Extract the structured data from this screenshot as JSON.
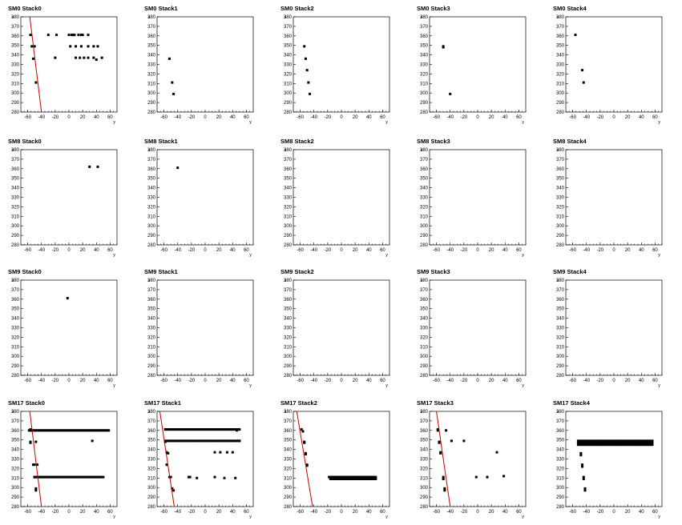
{
  "chart_data": [
    {
      "type": "scatter",
      "title": "SM0 Stack0",
      "xlabel": "y",
      "ylabel": "x",
      "xlim": [
        -70,
        70
      ],
      "ylim": [
        280,
        380
      ],
      "points": [
        [
          -56,
          361
        ],
        [
          -54,
          349
        ],
        [
          -52,
          336
        ],
        [
          -50,
          349
        ],
        [
          -48,
          311
        ],
        [
          -30,
          361
        ],
        [
          -20,
          337
        ],
        [
          -18,
          361
        ],
        [
          0,
          361
        ],
        [
          2,
          349
        ],
        [
          4,
          361
        ],
        [
          6,
          361
        ],
        [
          8,
          361
        ],
        [
          10,
          337
        ],
        [
          10,
          349
        ],
        [
          14,
          361
        ],
        [
          16,
          337
        ],
        [
          18,
          361
        ],
        [
          18,
          349
        ],
        [
          20,
          361
        ],
        [
          22,
          337
        ],
        [
          28,
          361
        ],
        [
          28,
          349
        ],
        [
          28,
          337
        ],
        [
          36,
          349
        ],
        [
          36,
          337
        ],
        [
          40,
          335
        ],
        [
          42,
          349
        ],
        [
          48,
          337
        ]
      ],
      "fit": [
        [
          -57,
          380
        ],
        [
          -40,
          280
        ]
      ]
    },
    {
      "type": "scatter",
      "title": "SM0 Stack1",
      "xlabel": "y",
      "ylabel": "x",
      "xlim": [
        -70,
        70
      ],
      "ylim": [
        280,
        380
      ],
      "points": [
        [
          -52,
          336
        ],
        [
          -48,
          311
        ],
        [
          -46,
          299
        ]
      ],
      "fit": null
    },
    {
      "type": "scatter",
      "title": "SM0 Stack2",
      "xlabel": "y",
      "ylabel": "x",
      "xlim": [
        -70,
        70
      ],
      "ylim": [
        280,
        380
      ],
      "points": [
        [
          -54,
          349
        ],
        [
          -52,
          336
        ],
        [
          -50,
          324
        ],
        [
          -48,
          311
        ],
        [
          -46,
          299
        ]
      ],
      "fit": null
    },
    {
      "type": "scatter",
      "title": "SM0 Stack3",
      "xlabel": "y",
      "ylabel": "x",
      "xlim": [
        -70,
        70
      ],
      "ylim": [
        280,
        380
      ],
      "points": [
        [
          -50,
          349
        ],
        [
          -50,
          348
        ],
        [
          -40,
          299
        ]
      ],
      "fit": null
    },
    {
      "type": "scatter",
      "title": "SM0 Stack4",
      "xlabel": "y",
      "ylabel": "x",
      "xlim": [
        -70,
        70
      ],
      "ylim": [
        280,
        380
      ],
      "points": [
        [
          -56,
          361
        ],
        [
          -46,
          324
        ],
        [
          -44,
          311
        ]
      ],
      "fit": null
    },
    {
      "type": "scatter",
      "title": "SM8 Stack0",
      "xlabel": "y",
      "ylabel": "x",
      "xlim": [
        -70,
        70
      ],
      "ylim": [
        280,
        380
      ],
      "points": [
        [
          30,
          362
        ],
        [
          42,
          362
        ]
      ],
      "fit": null
    },
    {
      "type": "scatter",
      "title": "SM8 Stack1",
      "xlabel": "y",
      "ylabel": "x",
      "xlim": [
        -70,
        70
      ],
      "ylim": [
        280,
        380
      ],
      "points": [
        [
          -40,
          361
        ]
      ],
      "fit": null
    },
    {
      "type": "scatter",
      "title": "SM8 Stack2",
      "xlabel": "y",
      "ylabel": "x",
      "xlim": [
        -70,
        70
      ],
      "ylim": [
        280,
        380
      ],
      "points": [],
      "fit": null
    },
    {
      "type": "scatter",
      "title": "SM8 Stack3",
      "xlabel": "y",
      "ylabel": "x",
      "xlim": [
        -70,
        70
      ],
      "ylim": [
        280,
        380
      ],
      "points": [],
      "fit": null
    },
    {
      "type": "scatter",
      "title": "SM8 Stack4",
      "xlabel": "y",
      "ylabel": "x",
      "xlim": [
        -70,
        70
      ],
      "ylim": [
        280,
        380
      ],
      "points": [],
      "fit": null
    },
    {
      "type": "scatter",
      "title": "SM9 Stack0",
      "xlabel": "y",
      "ylabel": "x",
      "xlim": [
        -70,
        70
      ],
      "ylim": [
        280,
        380
      ],
      "points": [
        [
          -2,
          361
        ]
      ],
      "fit": null
    },
    {
      "type": "scatter",
      "title": "SM9 Stack1",
      "xlabel": "y",
      "ylabel": "x",
      "xlim": [
        -70,
        70
      ],
      "ylim": [
        280,
        380
      ],
      "points": [],
      "fit": null
    },
    {
      "type": "scatter",
      "title": "SM9 Stack2",
      "xlabel": "y",
      "ylabel": "x",
      "xlim": [
        -70,
        70
      ],
      "ylim": [
        280,
        380
      ],
      "points": [],
      "fit": null
    },
    {
      "type": "scatter",
      "title": "SM9 Stack3",
      "xlabel": "y",
      "ylabel": "x",
      "xlim": [
        -70,
        70
      ],
      "ylim": [
        280,
        380
      ],
      "points": [],
      "fit": null
    },
    {
      "type": "scatter",
      "title": "SM9 Stack4",
      "xlabel": "y",
      "ylabel": "x",
      "xlim": [
        -70,
        70
      ],
      "ylim": [
        280,
        380
      ],
      "points": [],
      "fit": null
    },
    {
      "type": "scatter",
      "title": "SM17 Stack0",
      "xlabel": "y",
      "ylabel": "x",
      "xlim": [
        -70,
        70
      ],
      "ylim": [
        280,
        380
      ],
      "points": [
        [
          -56,
          361
        ],
        [
          -56,
          360
        ],
        [
          -56,
          348
        ],
        [
          -56,
          347
        ],
        [
          -52,
          324
        ],
        [
          -50,
          324
        ],
        [
          -46,
          324
        ],
        [
          -48,
          348
        ],
        [
          -50,
          311
        ],
        [
          -48,
          299
        ],
        [
          -48,
          297
        ],
        [
          34,
          349
        ]
      ],
      "bands": [
        {
          "y0": -58,
          "y1": 58,
          "x": 360,
          "step": 2
        },
        {
          "y0": -50,
          "y1": 50,
          "x": 311,
          "step": 2
        }
      ],
      "fit": [
        [
          -57,
          380
        ],
        [
          -40,
          280
        ]
      ]
    },
    {
      "type": "scatter",
      "title": "SM17 Stack1",
      "xlabel": "y",
      "ylabel": "x",
      "xlim": [
        -70,
        70
      ],
      "ylim": [
        280,
        380
      ],
      "points": [
        [
          -58,
          361
        ],
        [
          -58,
          348
        ],
        [
          -56,
          337
        ],
        [
          -54,
          336
        ],
        [
          -56,
          324
        ],
        [
          -52,
          311
        ],
        [
          -50,
          311
        ],
        [
          -48,
          299
        ],
        [
          -46,
          297
        ],
        [
          -24,
          311
        ],
        [
          -22,
          311
        ],
        [
          -12,
          310
        ],
        [
          14,
          311
        ],
        [
          14,
          337
        ],
        [
          22,
          337
        ],
        [
          28,
          310
        ],
        [
          32,
          337
        ],
        [
          40,
          337
        ],
        [
          44,
          310
        ],
        [
          46,
          360
        ],
        [
          50,
          349
        ]
      ],
      "bands": [
        {
          "y0": -58,
          "y1": 50,
          "x": 361,
          "step": 2
        },
        {
          "y0": -58,
          "y1": 50,
          "x": 349,
          "step": 2
        }
      ],
      "fit": [
        [
          -66,
          380
        ],
        [
          -45,
          280
        ]
      ]
    },
    {
      "type": "scatter",
      "title": "SM17 Stack2",
      "xlabel": "y",
      "ylabel": "x",
      "xlim": [
        -70,
        70
      ],
      "ylim": [
        280,
        380
      ],
      "points": [
        [
          -58,
          361
        ],
        [
          -56,
          359
        ],
        [
          -54,
          348
        ],
        [
          -54,
          347
        ],
        [
          -52,
          336
        ],
        [
          -52,
          335
        ],
        [
          -50,
          324
        ],
        [
          -50,
          323
        ]
      ],
      "bands": [
        {
          "y0": -18,
          "y1": 50,
          "x": 311,
          "step": 2
        },
        {
          "y0": -16,
          "y1": 50,
          "x": 309,
          "step": 2
        }
      ],
      "fit": [
        [
          -65,
          380
        ],
        [
          -42,
          280
        ]
      ]
    },
    {
      "type": "scatter",
      "title": "SM17 Stack3",
      "xlabel": "y",
      "ylabel": "x",
      "xlim": [
        -70,
        70
      ],
      "ylim": [
        280,
        380
      ],
      "points": [
        [
          -58,
          361
        ],
        [
          -58,
          360
        ],
        [
          -56,
          348
        ],
        [
          -56,
          347
        ],
        [
          -54,
          337
        ],
        [
          -54,
          336
        ],
        [
          -50,
          311
        ],
        [
          -50,
          309
        ],
        [
          -48,
          299
        ],
        [
          -48,
          297
        ],
        [
          -46,
          360
        ],
        [
          -38,
          349
        ],
        [
          -20,
          349
        ],
        [
          -2,
          311
        ],
        [
          14,
          311
        ],
        [
          28,
          337
        ],
        [
          38,
          312
        ]
      ],
      "fit": [
        [
          -60,
          380
        ],
        [
          -40,
          280
        ]
      ]
    },
    {
      "type": "scatter",
      "title": "SM17 Stack4",
      "xlabel": "y",
      "ylabel": "x",
      "xlim": [
        -70,
        70
      ],
      "ylim": [
        280,
        380
      ],
      "points": [
        [
          -48,
          336
        ],
        [
          -48,
          334
        ],
        [
          -46,
          324
        ],
        [
          -46,
          322
        ],
        [
          -44,
          311
        ],
        [
          -44,
          309
        ],
        [
          -42,
          299
        ],
        [
          -42,
          297
        ]
      ],
      "bands": [
        {
          "y0": -52,
          "y1": 56,
          "x": 349,
          "step": 2
        },
        {
          "y0": -52,
          "y1": 56,
          "x": 347,
          "step": 2
        },
        {
          "y0": -52,
          "y1": 56,
          "x": 345,
          "step": 2
        }
      ],
      "fit": null
    }
  ],
  "xticks": [
    -60,
    -40,
    -20,
    0,
    20,
    40,
    60
  ],
  "yticks": [
    280,
    290,
    300,
    310,
    320,
    330,
    340,
    350,
    360,
    370,
    380
  ]
}
